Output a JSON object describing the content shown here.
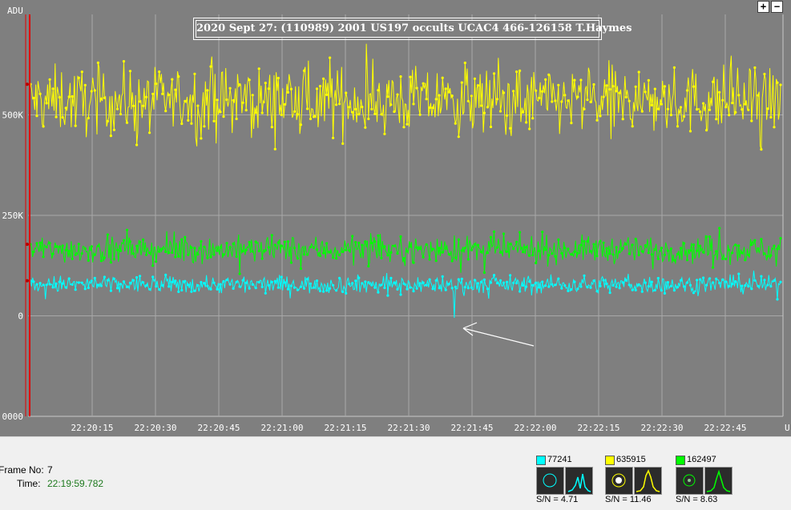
{
  "plot": {
    "title": "2020 Sept 27:   (110989) 2001 US197 occults UCAC4 466-126158   T.Haymes",
    "y_axis_label": "ADU",
    "y_ticks": [
      "500K",
      "250K",
      "0",
      "0000"
    ],
    "x_ticks": [
      "22:20:15",
      "22:20:30",
      "22:20:45",
      "22:21:00",
      "22:21:15",
      "22:21:30",
      "22:21:45",
      "22:22:00",
      "22:22:15",
      "22:22:30",
      "22:22:45"
    ],
    "x_axis_corner_label": "U",
    "zoom_in_label": "+",
    "zoom_out_label": "−",
    "background_color": "#7f7f7f",
    "grid_color": "#a8a8a8",
    "cursor_color": "#e00000",
    "annotation": "white arrow pointing at occultation dip in cyan series"
  },
  "chart_data": {
    "type": "scatter",
    "xlabel": "",
    "ylabel": "ADU",
    "ylim": [
      -250000,
      750000
    ],
    "grid": true,
    "series": [
      {
        "name": "635915",
        "color": "#ffff00",
        "mean": 535000,
        "spread": 45000
      },
      {
        "name": "162497",
        "color": "#00ff00",
        "mean": 165000,
        "spread": 18000
      },
      {
        "name": "77241",
        "color": "#00ffff",
        "mean": 78000,
        "spread": 12000,
        "event": "dip to ~ -5000 near 22:21:41"
      }
    ]
  },
  "info": {
    "frame_label": "Frame No:",
    "frame_value": "7",
    "time_label": "Time:",
    "time_value": "22:19:59.782"
  },
  "targets": [
    {
      "id": "77241",
      "color": "#00ffff",
      "sn_label": "S/N =",
      "sn_value": "4.71",
      "icon": "circle-aperture-icon"
    },
    {
      "id": "635915",
      "color": "#ffff00",
      "sn_label": "S/N =",
      "sn_value": "11.46",
      "icon": "star-aperture-icon"
    },
    {
      "id": "162497",
      "color": "#00ff00",
      "sn_label": "S/N =",
      "sn_value": "8.63",
      "icon": "circle-aperture-icon"
    }
  ]
}
